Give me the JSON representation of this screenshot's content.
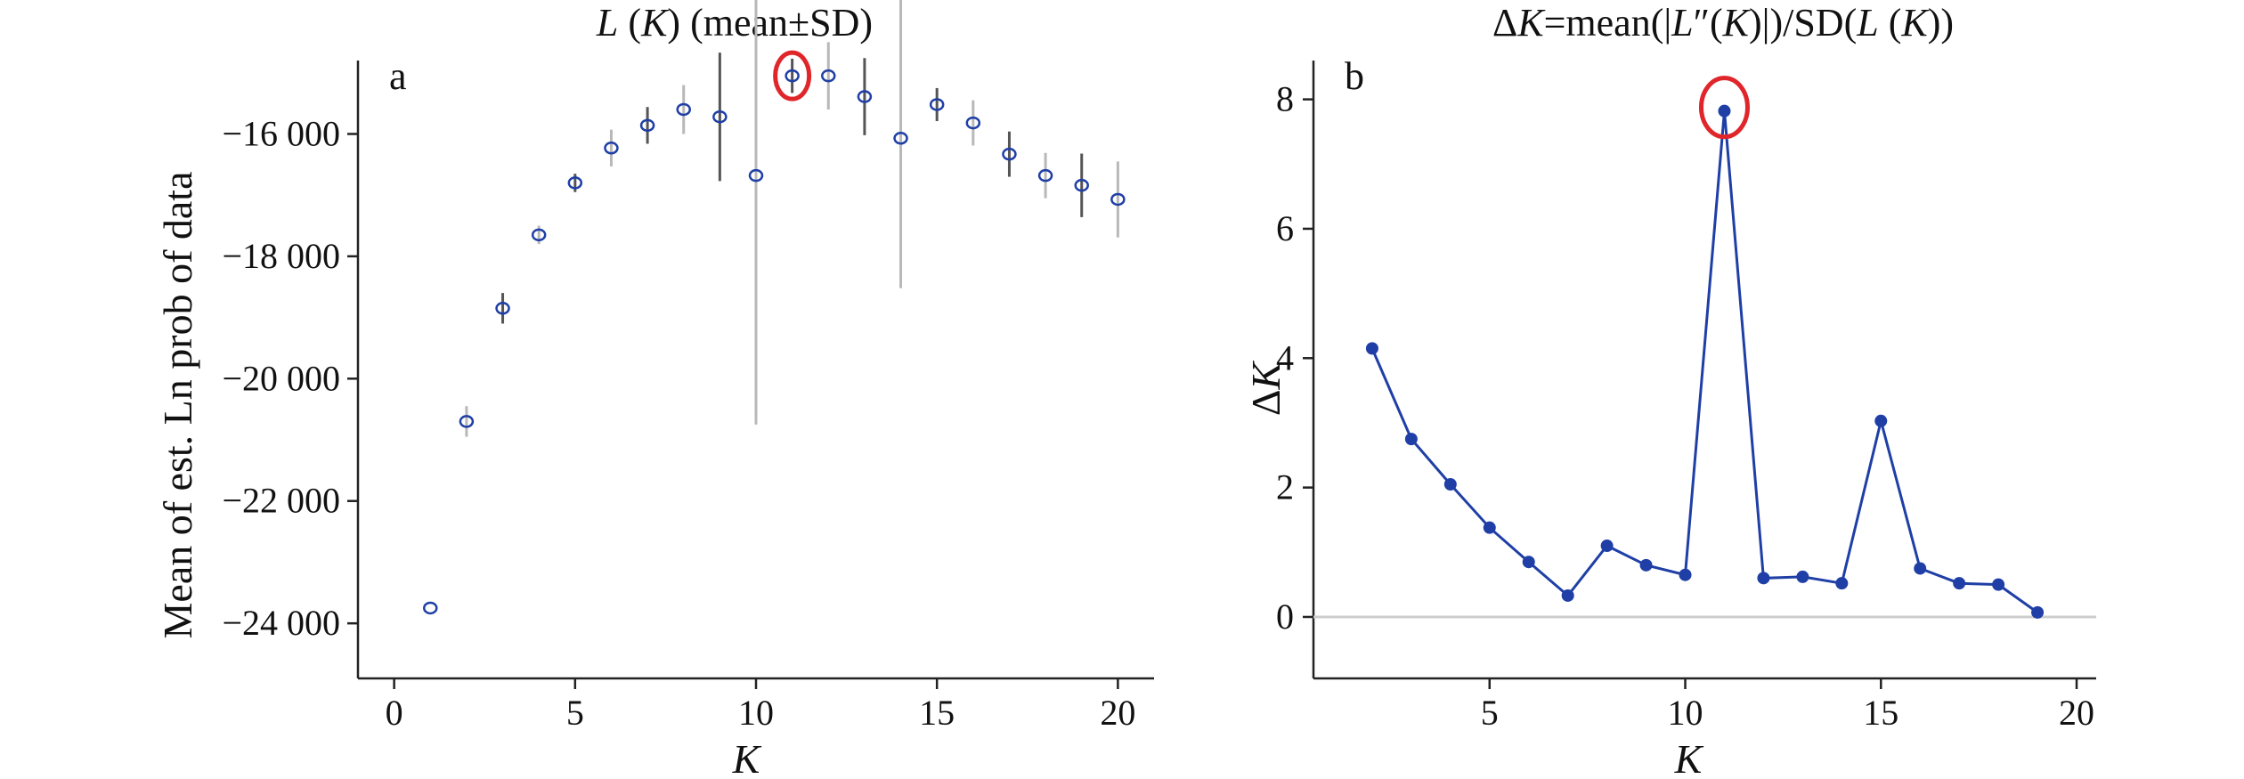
{
  "colors": {
    "series": "#1f3fa6",
    "errbar_light": "#b8b8b8",
    "errbar_dark": "#555555",
    "highlight": "#e0262a",
    "zero_line": "#cccccc"
  },
  "chart_data": [
    {
      "type": "scatter",
      "panel_letter": "a",
      "title_parts": {
        "l": "L",
        "k1": " (",
        "k": "K",
        "k2": ") (mean±SD)"
      },
      "xlabel": "K",
      "ylabel": "Mean of est. Ln prob of data",
      "xlim": [
        -1,
        21
      ],
      "ylim": [
        -24900,
        -14800
      ],
      "xticks": [
        0,
        5,
        10,
        15,
        20
      ],
      "xtick_labels": [
        "0",
        "5",
        "10",
        "15",
        "20"
      ],
      "yticks": [
        -24000,
        -22000,
        -20000,
        -18000,
        -16000
      ],
      "ytick_labels": [
        "−24 000",
        "−22 000",
        "−20 000",
        "−18 000",
        "−16 000"
      ],
      "grid": false,
      "highlight_x": 11,
      "points": [
        {
          "x": 1,
          "y": -23750,
          "sd": 0
        },
        {
          "x": 2,
          "y": -20700,
          "sd": 250
        },
        {
          "x": 3,
          "y": -18850,
          "sd": 250
        },
        {
          "x": 4,
          "y": -17650,
          "sd": 150
        },
        {
          "x": 5,
          "y": -16800,
          "sd": 150
        },
        {
          "x": 6,
          "y": -16230,
          "sd": 300
        },
        {
          "x": 7,
          "y": -15860,
          "sd": 300
        },
        {
          "x": 8,
          "y": -15600,
          "sd": 400
        },
        {
          "x": 9,
          "y": -15720,
          "sd": 1050
        },
        {
          "x": 10,
          "y": -16680,
          "sd": 4070
        },
        {
          "x": 11,
          "y": -15050,
          "sd": 280
        },
        {
          "x": 12,
          "y": -15050,
          "sd": 550
        },
        {
          "x": 13,
          "y": -15390,
          "sd": 630
        },
        {
          "x": 14,
          "y": -16070,
          "sd": 2450
        },
        {
          "x": 15,
          "y": -15520,
          "sd": 270
        },
        {
          "x": 16,
          "y": -15820,
          "sd": 370
        },
        {
          "x": 17,
          "y": -16330,
          "sd": 370
        },
        {
          "x": 18,
          "y": -16680,
          "sd": 370
        },
        {
          "x": 19,
          "y": -16840,
          "sd": 520
        },
        {
          "x": 20,
          "y": -17070,
          "sd": 620
        }
      ]
    },
    {
      "type": "line",
      "panel_letter": "b",
      "title_parts": {
        "delta": "Δ",
        "k_a": "K",
        "mid_a": "=mean(|",
        "l1": "L",
        "pp": "″(",
        "k_b": "K",
        "mid_b": ")|)/SD(",
        "l2": "L",
        "k2a": " (",
        "k_c": "K",
        "end": "))"
      },
      "xlabel": "K",
      "ylabel_parts": {
        "delta": "Δ",
        "k": "K"
      },
      "xlim": [
        0.5,
        20.5
      ],
      "ylim": [
        -0.95,
        8.6
      ],
      "xticks": [
        5,
        10,
        15,
        20
      ],
      "xtick_labels": [
        "5",
        "10",
        "15",
        "20"
      ],
      "yticks": [
        0,
        2,
        4,
        6,
        8
      ],
      "ytick_labels": [
        "0",
        "2",
        "4",
        "6",
        "8"
      ],
      "grid": false,
      "zero_line": true,
      "highlight_x": 11,
      "x": [
        2,
        3,
        4,
        5,
        6,
        7,
        8,
        9,
        10,
        11,
        12,
        13,
        14,
        15,
        16,
        17,
        18,
        19
      ],
      "values": [
        4.15,
        2.75,
        2.05,
        1.38,
        0.85,
        0.33,
        1.1,
        0.8,
        0.65,
        7.82,
        0.6,
        0.62,
        0.52,
        3.03,
        0.75,
        0.52,
        0.5,
        0.07
      ]
    }
  ]
}
